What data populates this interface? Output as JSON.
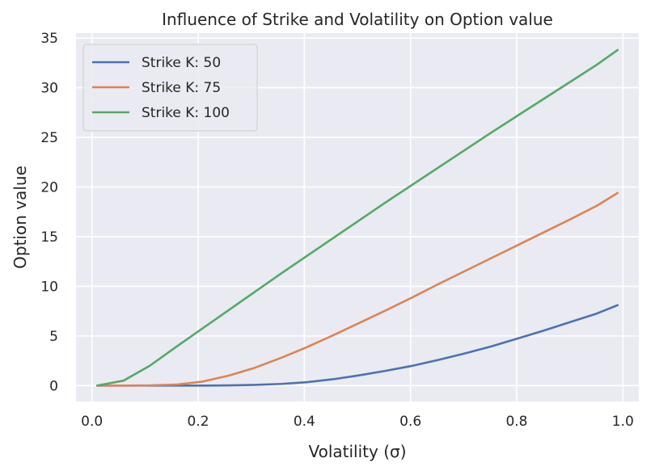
{
  "chart_data": {
    "type": "line",
    "title": "Influence of Strike and Volatility on Option value",
    "xlabel": "Volatility (σ)",
    "ylabel": "Option value",
    "xlim": [
      -0.03,
      1.03
    ],
    "ylim": [
      -1.6,
      35.5
    ],
    "xticks": [
      0.0,
      0.2,
      0.4,
      0.6,
      0.8,
      1.0
    ],
    "xtick_labels": [
      "0.0",
      "0.2",
      "0.4",
      "0.6",
      "0.8",
      "1.0"
    ],
    "yticks": [
      0,
      5,
      10,
      15,
      20,
      25,
      30,
      35
    ],
    "ytick_labels": [
      "0",
      "5",
      "10",
      "15",
      "20",
      "25",
      "30",
      "35"
    ],
    "grid": true,
    "legend_position": "top-left",
    "x": [
      0.01,
      0.0595,
      0.109,
      0.1585,
      0.208,
      0.2575,
      0.307,
      0.3565,
      0.406,
      0.4555,
      0.505,
      0.5545,
      0.604,
      0.6535,
      0.703,
      0.7525,
      0.802,
      0.8515,
      0.901,
      0.9505,
      0.99
    ],
    "series": [
      {
        "name": "Strike K: 50",
        "color": "#4c72b0",
        "values": [
          0.0,
          0.0,
          0.0,
          0.0,
          0.0,
          0.02,
          0.07,
          0.17,
          0.35,
          0.65,
          1.05,
          1.5,
          2.0,
          2.6,
          3.25,
          3.95,
          4.75,
          5.55,
          6.4,
          7.25,
          8.1
        ]
      },
      {
        "name": "Strike K: 75",
        "color": "#dd8452",
        "values": [
          0.0,
          0.0,
          0.02,
          0.1,
          0.4,
          1.0,
          1.8,
          2.8,
          3.9,
          5.1,
          6.35,
          7.6,
          8.9,
          10.25,
          11.55,
          12.85,
          14.15,
          15.45,
          16.75,
          18.1,
          19.4
        ]
      },
      {
        "name": "Strike K: 100",
        "color": "#55a868",
        "values": [
          0.0,
          0.5,
          2.0,
          3.9,
          5.75,
          7.6,
          9.45,
          11.3,
          13.1,
          14.9,
          16.7,
          18.5,
          20.25,
          22.0,
          23.75,
          25.5,
          27.2,
          28.9,
          30.6,
          32.3,
          33.8
        ]
      }
    ]
  },
  "colors": {
    "axes_bg": "#eaeaf2",
    "grid": "#ffffff",
    "text": "#262626"
  }
}
